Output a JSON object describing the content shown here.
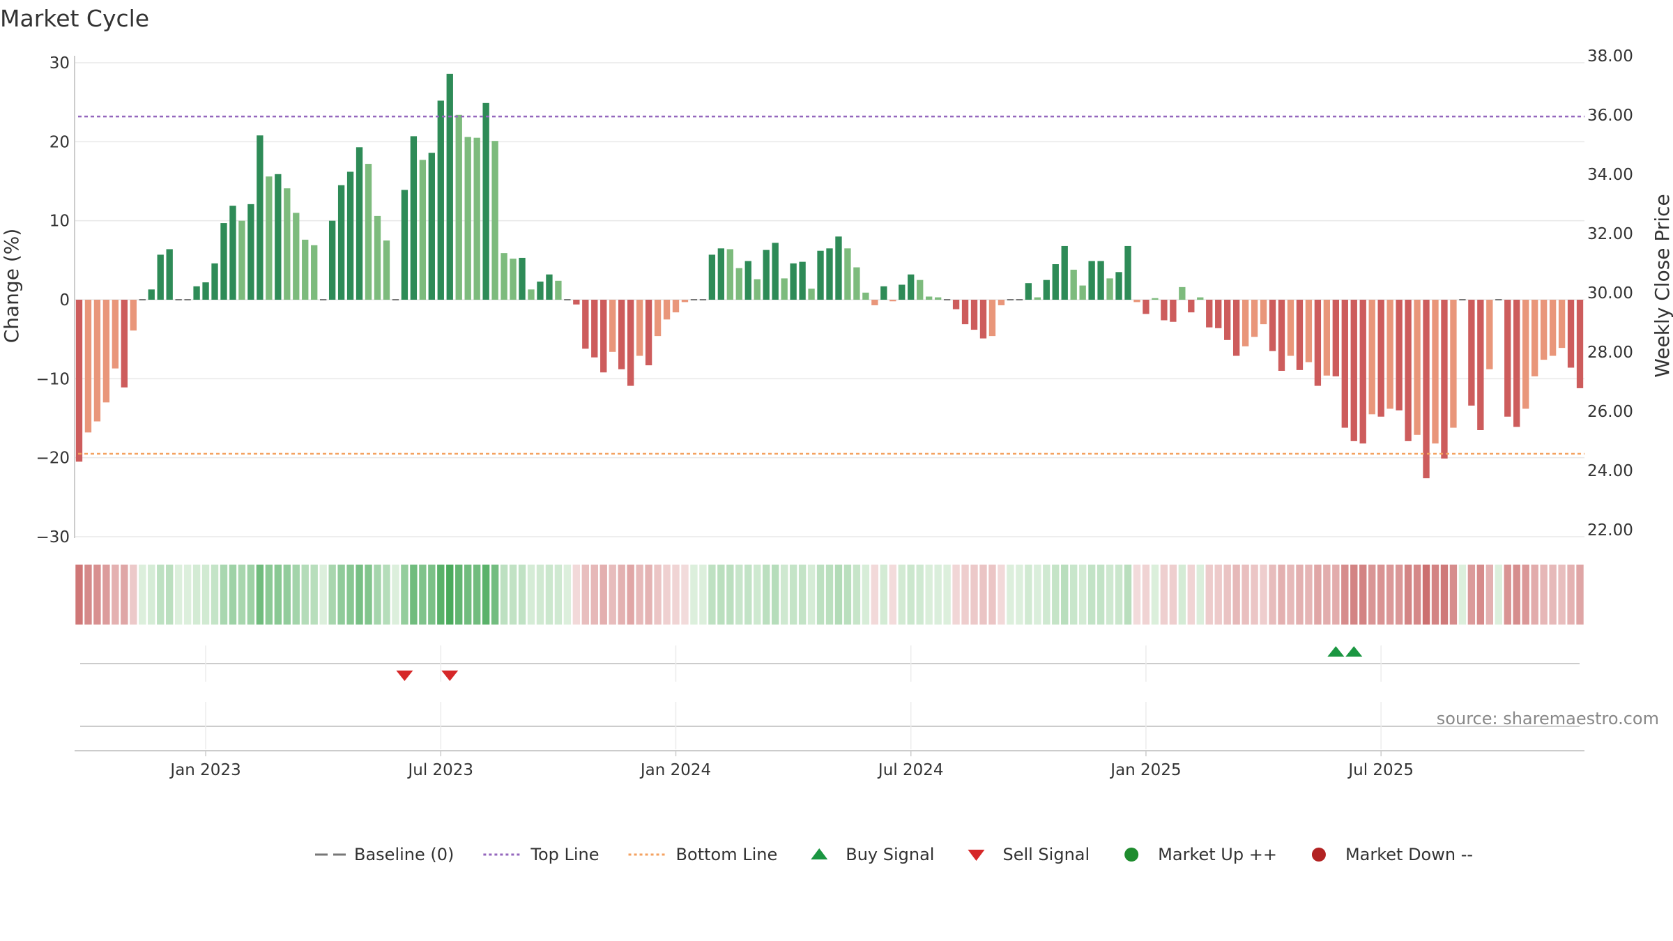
{
  "chart_data": {
    "type": "bar",
    "title": "Market Cycle",
    "source": "source: sharemaestro.com",
    "y_left": {
      "label": "Change (%)",
      "ticks": [
        30,
        20,
        10,
        0,
        -10,
        -20,
        -30
      ],
      "tick_labels": [
        "30",
        "20",
        "10",
        "0",
        "−10",
        "−20",
        "−30"
      ],
      "range": [
        -30,
        30
      ]
    },
    "y_right": {
      "label": "Weekly Close Price",
      "ticks": [
        "38.00",
        "36.00",
        "34.00",
        "32.00",
        "30.00",
        "28.00",
        "26.00",
        "24.00",
        "22.00"
      ],
      "range": [
        22,
        38
      ]
    },
    "x_ticks": [
      {
        "label": "Jan 2023",
        "week": 14.5
      },
      {
        "label": "Jul 2023",
        "week": 40.5
      },
      {
        "label": "Jan 2024",
        "week": 66.5
      },
      {
        "label": "Jul 2024",
        "week": 92.5
      },
      {
        "label": "Jan 2025",
        "week": 118.5
      },
      {
        "label": "Jul 2025",
        "week": 144.5
      }
    ],
    "top_line": 23.2,
    "bottom_line": -19.5,
    "grid": true,
    "legend_position": "bottom-center",
    "legend": [
      {
        "label": "Baseline (0)",
        "symbol": "dash",
        "color": "#777777"
      },
      {
        "label": "Top Line",
        "symbol": "dotted-line",
        "color": "#9467bd"
      },
      {
        "label": "Bottom Line",
        "symbol": "dotted-line",
        "color": "#f4a261"
      },
      {
        "label": "Buy Signal",
        "symbol": "triangle-up",
        "color": "#1a9641"
      },
      {
        "label": "Sell Signal",
        "symbol": "triangle-down",
        "color": "#d62728"
      },
      {
        "label": "Market Up ++",
        "symbol": "circle",
        "color": "#1e8c2e"
      },
      {
        "label": "Market Down --",
        "symbol": "circle",
        "color": "#b22222"
      }
    ],
    "colors": {
      "up_strong": "#2e8b57",
      "up_light": "#7dbb7d",
      "down_strong": "#cd5c5c",
      "down_light": "#e9967a",
      "top_line": "#9467bd",
      "bottom_line": "#f4a261",
      "buy": "#1a9641",
      "sell": "#d62728"
    },
    "buy_signals_week": [
      139,
      141
    ],
    "sell_signals_week": [
      36,
      41
    ],
    "values": [
      -20.5,
      -16.8,
      -15.4,
      -13,
      -8.7,
      -11.1,
      -3.9,
      0,
      1.3,
      5.7,
      6.4,
      0,
      0,
      1.7,
      2.2,
      4.6,
      9.7,
      11.9,
      10,
      12.1,
      20.8,
      15.6,
      15.9,
      14.1,
      11,
      7.6,
      6.9,
      0,
      10,
      14.5,
      16.2,
      19.3,
      17.2,
      10.6,
      7.5,
      0,
      13.9,
      20.7,
      17.7,
      18.6,
      25.2,
      28.6,
      23.4,
      20.6,
      20.5,
      24.9,
      20.1,
      5.9,
      5.2,
      5.3,
      1.3,
      2.3,
      3.2,
      2.4,
      0,
      -0.6,
      -6.2,
      -7.3,
      -9.2,
      -6.6,
      -8.8,
      -10.9,
      -7.1,
      -8.3,
      -4.6,
      -2.5,
      -1.6,
      -0.3,
      0,
      0,
      5.7,
      6.5,
      6.4,
      4,
      4.9,
      2.6,
      6.3,
      7.2,
      2.7,
      4.6,
      4.8,
      1.4,
      6.2,
      6.5,
      8,
      6.5,
      4.1,
      0.9,
      -0.7,
      1.7,
      -0.2,
      1.9,
      3.2,
      2.5,
      0.4,
      0.3,
      0,
      -1.2,
      -3.1,
      -3.8,
      -4.9,
      -4.6,
      -0.7,
      0,
      0,
      2.1,
      0.3,
      2.5,
      4.5,
      6.8,
      3.8,
      1.8,
      4.9,
      4.9,
      2.7,
      3.5,
      6.8,
      -0.3,
      -1.8,
      0.2,
      -2.6,
      -2.8,
      1.6,
      -1.6,
      0.3,
      -3.5,
      -3.6,
      -5.1,
      -7.1,
      -5.9,
      -4.7,
      -3.1,
      -6.5,
      -9,
      -7.1,
      -8.9,
      -7.9,
      -10.9,
      -9.6,
      -9.7,
      -16.2,
      -17.9,
      -18.2,
      -14.5,
      -14.8,
      -13.8,
      -14,
      -17.9,
      -17.1,
      -22.6,
      -18.2,
      -20.1,
      -16.2,
      0,
      -13.4,
      -16.5,
      -8.8,
      0,
      -14.8,
      -16.1,
      -13.8,
      -9.7,
      -7.6,
      -7.1,
      -6.1,
      -8.6,
      -11.2
    ]
  }
}
